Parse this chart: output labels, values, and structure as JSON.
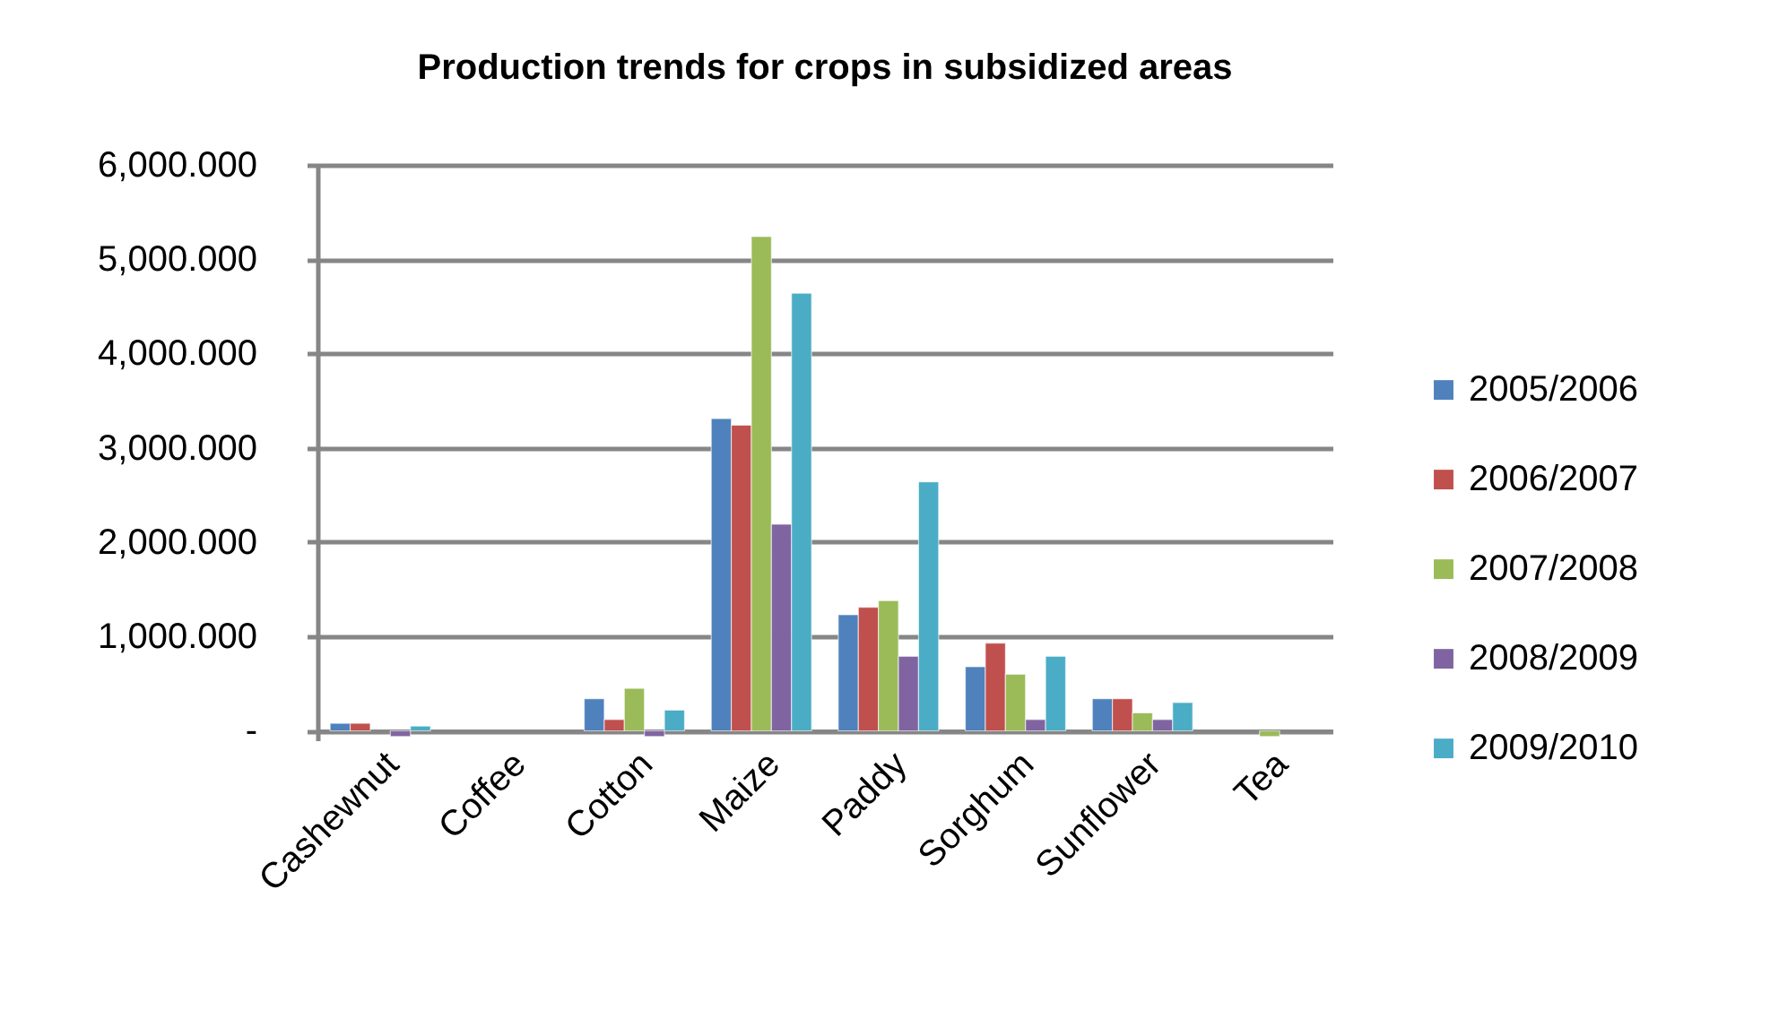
{
  "chart_data": {
    "type": "bar",
    "title": "Production trends for crops in subsidized areas",
    "categories": [
      "Cashewnut",
      "Coffee",
      "Cotton",
      "Maize",
      "Paddy",
      "Sorghum",
      "Sunflower",
      "Tea"
    ],
    "series": [
      {
        "name": "2005/2006",
        "color": "#4f81bd",
        "values": [
          80,
          null,
          340,
          3310,
          1230,
          680,
          340,
          null
        ]
      },
      {
        "name": "2006/2007",
        "color": "#c0504d",
        "values": [
          80,
          null,
          120,
          3240,
          1310,
          930,
          340,
          null
        ]
      },
      {
        "name": "2007/2008",
        "color": "#9bbb59",
        "values": [
          null,
          null,
          450,
          5240,
          1380,
          600,
          190,
          -60
        ]
      },
      {
        "name": "2008/2009",
        "color": "#8064a2",
        "values": [
          -60,
          null,
          -60,
          2190,
          790,
          120,
          120,
          null
        ]
      },
      {
        "name": "2009/2010",
        "color": "#4bacc6",
        "values": [
          50,
          null,
          220,
          4640,
          2640,
          790,
          300,
          null
        ]
      }
    ],
    "ylim": [
      -100,
      6000
    ],
    "yticks": [
      {
        "value": 0,
        "label": "-"
      },
      {
        "value": 1000,
        "label": "1,000.000"
      },
      {
        "value": 2000,
        "label": "2,000.000"
      },
      {
        "value": 3000,
        "label": "3,000.000"
      },
      {
        "value": 4000,
        "label": "4,000.000"
      },
      {
        "value": 5000,
        "label": "5,000.000"
      },
      {
        "value": 6000,
        "label": "6,000.000"
      }
    ],
    "grid": "y",
    "legend": "right"
  }
}
